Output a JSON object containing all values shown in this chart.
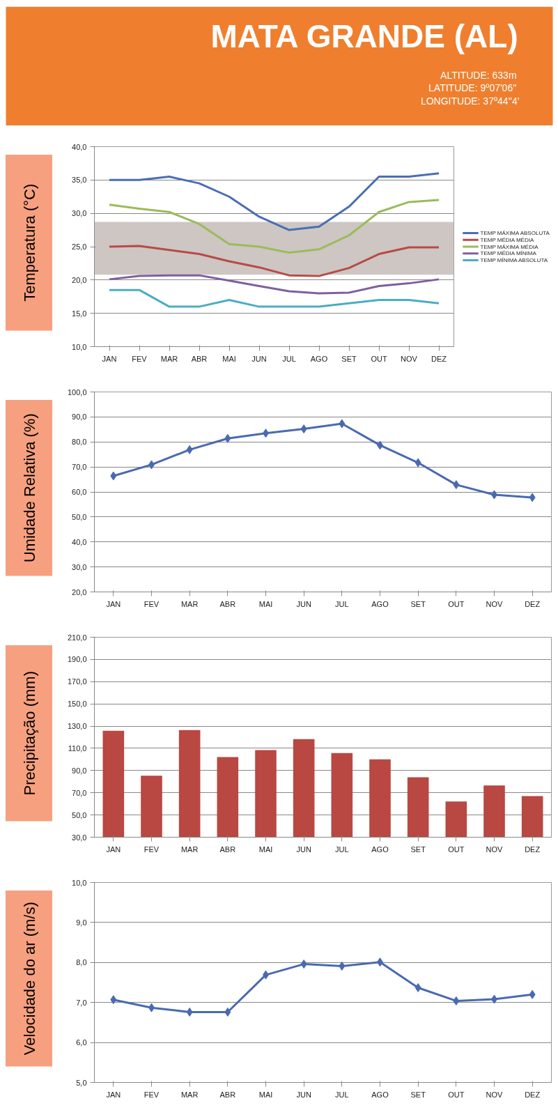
{
  "chart_data": [
    {
      "type": "other",
      "title": "MATA GRANDE (AL)",
      "annotations": [
        "ALTITUDE:  633m",
        "LATITUDE:  9º07'06''",
        "LONGITUDE: 37º44''4'"
      ]
    },
    {
      "type": "line",
      "ylabel": "Temperatura (°C)",
      "categories": [
        "JAN",
        "FEV",
        "MAR",
        "ABR",
        "MAI",
        "JUN",
        "JUL",
        "AGO",
        "SET",
        "OUT",
        "NOV",
        "DEZ"
      ],
      "series": [
        {
          "name": "TEMP MÁXIMA ABSOLUTA",
          "color": "#4a6eb5",
          "values": [
            35.0,
            35.0,
            35.5,
            34.5,
            32.5,
            29.5,
            27.5,
            28.0,
            31.0,
            35.5,
            35.5,
            36.0
          ]
        },
        {
          "name": "TEMP MÉDIA MÉDIA",
          "color": "#b94a45",
          "values": [
            25.0,
            25.1,
            24.5,
            23.9,
            22.8,
            21.9,
            20.7,
            20.6,
            21.8,
            23.9,
            24.9,
            24.9
          ]
        },
        {
          "name": "TEMP MÁXIMA MÉDIA",
          "color": "#9bbb59",
          "values": [
            31.3,
            30.7,
            30.2,
            28.4,
            25.4,
            25.0,
            24.1,
            24.6,
            26.7,
            30.2,
            31.7,
            32.0
          ]
        },
        {
          "name": "TEMP MÉDIA MÍNIMA",
          "color": "#7f5fa0",
          "values": [
            20.1,
            20.6,
            20.7,
            20.7,
            19.9,
            19.1,
            18.3,
            18.0,
            18.1,
            19.1,
            19.5,
            20.1
          ]
        },
        {
          "name": "TEMP MÍNIMA ABSOLUTA",
          "color": "#4bacc6",
          "values": [
            18.5,
            18.5,
            16.0,
            16.0,
            17.0,
            16.0,
            16.0,
            16.0,
            16.5,
            17.0,
            17.0,
            16.5
          ]
        }
      ],
      "bands": [
        {
          "axis": "y",
          "from": 20.8,
          "to": 28.7,
          "color": "#cdc6c3"
        }
      ],
      "ylim": [
        10,
        40
      ],
      "yticks": [
        {
          "value": 10,
          "label": "10,0"
        },
        {
          "value": 15,
          "label": "15,0"
        },
        {
          "value": 20,
          "label": "20,0"
        },
        {
          "value": 25,
          "label": "25,0"
        },
        {
          "value": 30,
          "label": "30,0"
        },
        {
          "value": 35,
          "label": "35,0"
        },
        {
          "value": 40,
          "label": "40,0"
        }
      ],
      "grid": "y",
      "legend": "right",
      "marker": "none",
      "line_style": "solid"
    },
    {
      "type": "line",
      "ylabel": "Umidade Relativa (%)",
      "categories": [
        "JAN",
        "FEV",
        "MAR",
        "ABR",
        "MAI",
        "JUN",
        "JUL",
        "AGO",
        "SET",
        "OUT",
        "NOV",
        "DEZ"
      ],
      "series": [
        {
          "color": "#4a6ab0",
          "values": [
            66.4,
            70.9,
            76.9,
            81.4,
            83.5,
            85.2,
            87.3,
            78.7,
            71.7,
            62.9,
            58.9,
            57.8
          ]
        }
      ],
      "ylim": [
        20,
        100
      ],
      "yticks": [
        {
          "value": 20,
          "label": "20,0"
        },
        {
          "value": 30,
          "label": "30,0"
        },
        {
          "value": 40,
          "label": "40,0"
        },
        {
          "value": 50,
          "label": "50,0"
        },
        {
          "value": 60,
          "label": "60,0"
        },
        {
          "value": 70,
          "label": "70,0"
        },
        {
          "value": 80,
          "label": "80,0"
        },
        {
          "value": 90,
          "label": "90,0"
        },
        {
          "value": 100,
          "label": "100,0"
        }
      ],
      "grid": "y",
      "marker": "diamond",
      "line_style": "solid"
    },
    {
      "type": "bar",
      "ylabel": "Precipitação (mm)",
      "categories": [
        "JAN",
        "FEV",
        "MAR",
        "ABR",
        "MAI",
        "JUN",
        "JUL",
        "AGO",
        "SET",
        "OUT",
        "NOV",
        "DEZ"
      ],
      "series": [
        {
          "color": "#b94742",
          "values": [
            125.8,
            85.4,
            126.4,
            102.2,
            108.4,
            118.2,
            105.7,
            100.1,
            83.9,
            62.1,
            76.5,
            67.0
          ]
        }
      ],
      "ylim": [
        30,
        210
      ],
      "yticks": [
        {
          "value": 30,
          "label": "30,0"
        },
        {
          "value": 50,
          "label": "50,0"
        },
        {
          "value": 70,
          "label": "70,0"
        },
        {
          "value": 90,
          "label": "90,0"
        },
        {
          "value": 110,
          "label": "110,0"
        },
        {
          "value": 130,
          "label": "130,0"
        },
        {
          "value": 150,
          "label": "150,0"
        },
        {
          "value": 170,
          "label": "170,0"
        },
        {
          "value": 190,
          "label": "190,0"
        },
        {
          "value": 210,
          "label": "210,0"
        }
      ],
      "grid": "y"
    },
    {
      "type": "line",
      "ylabel": "Velocidade do ar (m/s)",
      "categories": [
        "JAN",
        "FEV",
        "MAR",
        "ABR",
        "MAI",
        "JUN",
        "JUL",
        "AGO",
        "SET",
        "OUT",
        "NOV",
        "DEZ"
      ],
      "series": [
        {
          "color": "#4a6ab0",
          "values": [
            7.07,
            6.87,
            6.76,
            6.76,
            7.69,
            7.96,
            7.91,
            8.01,
            7.37,
            7.04,
            7.08,
            7.2
          ]
        }
      ],
      "ylim": [
        5,
        10
      ],
      "yticks": [
        {
          "value": 5,
          "label": "5,0"
        },
        {
          "value": 6,
          "label": "6,0"
        },
        {
          "value": 7,
          "label": "7,0"
        },
        {
          "value": 8,
          "label": "8,0"
        },
        {
          "value": 9,
          "label": "9,0"
        },
        {
          "value": 10,
          "label": "10,0"
        }
      ],
      "grid": "y",
      "marker": "diamond",
      "line_style": "solid"
    }
  ]
}
